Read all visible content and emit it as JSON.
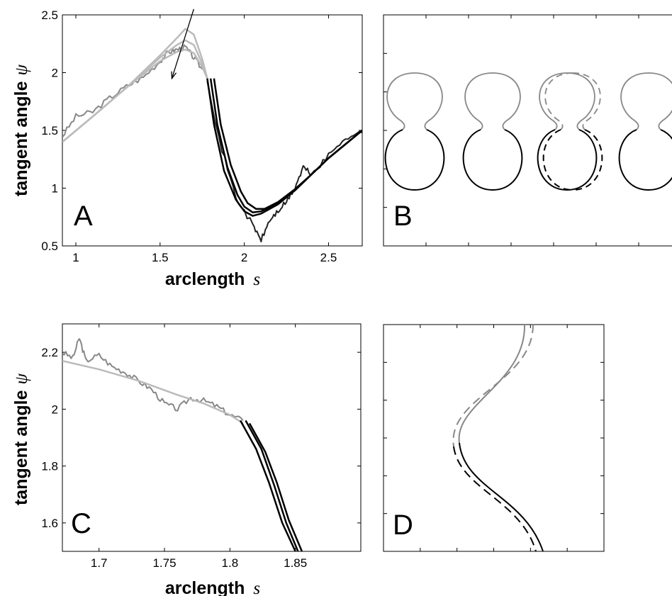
{
  "chart_data": [
    {
      "panel": "A",
      "type": "line",
      "xlabel": "arclength",
      "xlabel_symbol": "s",
      "ylabel": "tangent angle",
      "ylabel_symbol": "ψ",
      "xlim": [
        0.92,
        2.7
      ],
      "ylim": [
        0.5,
        2.5
      ],
      "xticks": [
        1,
        1.5,
        2,
        2.5
      ],
      "yticks": [
        0.5,
        1,
        1.5,
        2,
        2.5
      ],
      "grid": false,
      "annotations": [
        {
          "type": "arrow",
          "from": [
            1.7,
            2.55
          ],
          "to": [
            1.57,
            1.95
          ]
        }
      ],
      "series": [
        {
          "color": "#888888",
          "style": "noisy",
          "x": [
            0.92,
            1.0,
            1.1,
            1.2,
            1.3,
            1.4,
            1.5,
            1.55,
            1.6,
            1.65,
            1.7,
            1.75
          ],
          "y": [
            1.45,
            1.62,
            1.66,
            1.78,
            1.88,
            1.96,
            2.1,
            2.18,
            2.2,
            2.22,
            2.13,
            2.03
          ]
        },
        {
          "color": "#bbbbbb",
          "style": "smooth",
          "x": [
            0.92,
            1.1,
            1.3,
            1.5,
            1.6,
            1.65,
            1.7,
            1.75,
            1.78
          ],
          "y": [
            1.4,
            1.62,
            1.87,
            2.15,
            2.3,
            2.38,
            2.33,
            2.12,
            1.95
          ]
        },
        {
          "color": "#bbbbbb",
          "style": "smooth",
          "x": [
            0.92,
            1.1,
            1.3,
            1.5,
            1.6,
            1.65,
            1.7,
            1.75,
            1.78
          ],
          "y": [
            1.4,
            1.62,
            1.87,
            2.13,
            2.24,
            2.28,
            2.24,
            2.08,
            1.95
          ]
        },
        {
          "color": "#bbbbbb",
          "style": "smooth",
          "x": [
            0.92,
            1.1,
            1.3,
            1.5,
            1.6,
            1.65,
            1.7,
            1.75,
            1.78
          ],
          "y": [
            1.4,
            1.62,
            1.87,
            2.1,
            2.18,
            2.2,
            2.17,
            2.05,
            1.95
          ]
        },
        {
          "color": "#222222",
          "style": "noisy",
          "x": [
            1.78,
            1.85,
            1.95,
            2.05,
            2.1,
            2.15,
            2.2,
            2.25,
            2.3,
            2.35,
            2.4,
            2.5,
            2.6,
            2.7
          ],
          "y": [
            1.95,
            1.42,
            0.92,
            0.68,
            0.55,
            0.72,
            0.8,
            0.88,
            1.0,
            1.18,
            1.12,
            1.28,
            1.44,
            1.48
          ]
        },
        {
          "color": "#000000",
          "style": "smooth",
          "x": [
            1.78,
            1.82,
            1.88,
            1.95,
            2.0,
            2.05,
            2.1,
            2.2,
            2.3,
            2.4,
            2.5,
            2.6,
            2.7
          ],
          "y": [
            1.95,
            1.55,
            1.15,
            0.9,
            0.8,
            0.76,
            0.78,
            0.86,
            0.98,
            1.12,
            1.26,
            1.38,
            1.5
          ]
        },
        {
          "color": "#000000",
          "style": "smooth",
          "x": [
            1.8,
            1.84,
            1.9,
            1.96,
            2.0,
            2.05,
            2.1,
            2.2,
            2.3,
            2.4,
            2.5,
            2.6,
            2.7
          ],
          "y": [
            1.95,
            1.55,
            1.18,
            0.94,
            0.84,
            0.79,
            0.8,
            0.87,
            0.98,
            1.12,
            1.26,
            1.38,
            1.5
          ]
        },
        {
          "color": "#000000",
          "style": "smooth",
          "x": [
            1.82,
            1.86,
            1.92,
            1.98,
            2.02,
            2.07,
            2.12,
            2.2,
            2.3,
            2.4,
            2.5,
            2.6,
            2.7
          ],
          "y": [
            1.95,
            1.55,
            1.2,
            0.97,
            0.87,
            0.82,
            0.82,
            0.88,
            0.99,
            1.12,
            1.26,
            1.38,
            1.5
          ]
        }
      ]
    },
    {
      "panel": "B",
      "type": "line",
      "description_shapes": "four bilobed vesicle contours; upper lobes grey, lower lobes black; third contour overlaid with dashed copy",
      "grid": false,
      "ticks_labeled": false
    },
    {
      "panel": "C",
      "type": "line",
      "xlabel": "arclength",
      "xlabel_symbol": "s",
      "ylabel": "tangent angle",
      "ylabel_symbol": "ψ",
      "xlim": [
        1.672,
        1.9
      ],
      "ylim": [
        1.5,
        2.3
      ],
      "xticks": [
        1.7,
        1.75,
        1.8,
        1.85
      ],
      "yticks": [
        1.6,
        1.8,
        2,
        2.2
      ],
      "grid": false,
      "series": [
        {
          "color": "#888888",
          "style": "noisy",
          "x": [
            1.672,
            1.68,
            1.685,
            1.69,
            1.7,
            1.71,
            1.72,
            1.73,
            1.74,
            1.75,
            1.76,
            1.77,
            1.78,
            1.79,
            1.8,
            1.81
          ],
          "y": [
            2.2,
            2.18,
            2.25,
            2.17,
            2.19,
            2.15,
            2.13,
            2.1,
            2.07,
            2.02,
            2.0,
            2.04,
            2.03,
            2.01,
            1.98,
            1.96
          ]
        },
        {
          "color": "#bbbbbb",
          "style": "smooth",
          "x": [
            1.672,
            1.7,
            1.73,
            1.76,
            1.78,
            1.8,
            1.81
          ],
          "y": [
            2.17,
            2.14,
            2.1,
            2.05,
            2.02,
            1.98,
            1.95
          ]
        },
        {
          "color": "#000000",
          "style": "smooth",
          "x": [
            1.808,
            1.82,
            1.83,
            1.84,
            1.85
          ],
          "y": [
            1.96,
            1.86,
            1.74,
            1.6,
            1.5
          ]
        },
        {
          "color": "#000000",
          "style": "smooth",
          "x": [
            1.812,
            1.824,
            1.834,
            1.843,
            1.852
          ],
          "y": [
            1.96,
            1.86,
            1.73,
            1.6,
            1.5
          ]
        },
        {
          "color": "#000000",
          "style": "smooth",
          "x": [
            1.815,
            1.827,
            1.836,
            1.845,
            1.855
          ],
          "y": [
            1.95,
            1.85,
            1.74,
            1.61,
            1.5
          ]
        }
      ]
    },
    {
      "panel": "D",
      "type": "line",
      "description_shapes": "zoom on neck region of a vesicle contour; solid (grey above, black below) and dashed outlines",
      "grid": false,
      "ticks_labeled": false
    }
  ],
  "labels": {
    "panel_a": "A",
    "panel_b": "B",
    "panel_c": "C",
    "panel_d": "D",
    "xlabel_a": "arclength",
    "xlabel_a_sym": "s",
    "ylabel_a": "tangent angle",
    "ylabel_a_sym": "ψ",
    "xlabel_c": "arclength",
    "xlabel_c_sym": "s",
    "ylabel_c": "tangent angle",
    "ylabel_c_sym": "ψ"
  },
  "colors": {
    "light_grey": "#bbbbbb",
    "mid_grey": "#888888",
    "black": "#000000"
  }
}
